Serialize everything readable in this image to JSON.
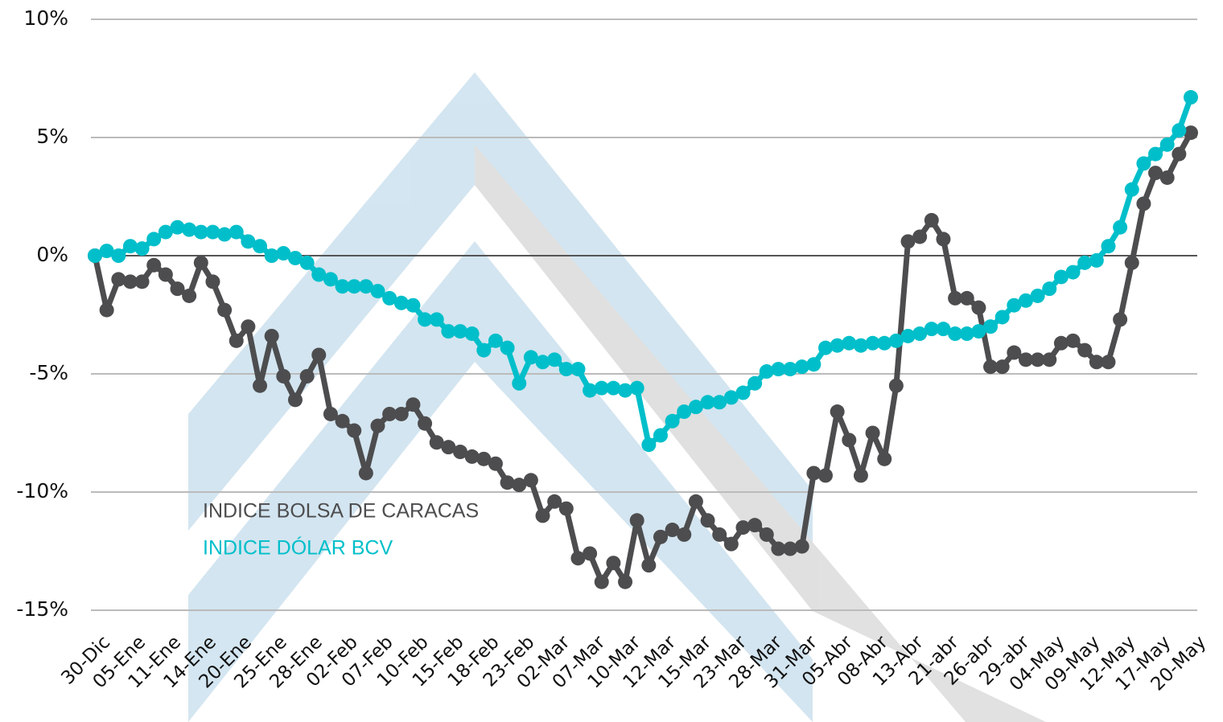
{
  "chart_data": {
    "type": "line",
    "categories": [
      "30-Dic",
      null,
      null,
      "05-Ene",
      null,
      null,
      "11-Ene",
      null,
      null,
      "14-Ene",
      null,
      null,
      "20-Ene",
      null,
      null,
      "25-Ene",
      null,
      null,
      "28-Ene",
      null,
      null,
      "02-Feb",
      null,
      null,
      "07-Feb",
      null,
      null,
      "10-Feb",
      null,
      null,
      "15-Feb",
      null,
      null,
      "18-Feb",
      null,
      null,
      "23-Feb",
      null,
      null,
      "02-Mar",
      null,
      null,
      "07-Mar",
      null,
      null,
      "10-Mar",
      null,
      null,
      "12-Mar",
      null,
      null,
      "15-Mar",
      null,
      null,
      "23-Mar",
      null,
      null,
      "28-Mar",
      null,
      null,
      "31-Mar",
      null,
      null,
      "05-Abr",
      null,
      null,
      "08-Abr",
      null,
      null,
      "13-Abr",
      null,
      null,
      "21-abr",
      null,
      null,
      "26-abr",
      null,
      null,
      "29-abr",
      null,
      null,
      "04-May",
      null,
      null,
      "09-May",
      null,
      null,
      "12-May",
      null,
      null,
      "17-May",
      null,
      null,
      "20-May"
    ],
    "series": [
      {
        "name": "INDICE BOLSA DE CARACAS",
        "color": "#4d4d4f",
        "values": [
          0,
          -2.3,
          -1.0,
          -1.1,
          -1.1,
          -0.4,
          -0.8,
          -1.4,
          -1.7,
          -0.3,
          -1.1,
          -2.3,
          -3.6,
          -3.0,
          -5.5,
          -3.4,
          -5.1,
          -6.1,
          -5.1,
          -4.2,
          -6.7,
          -7.0,
          -7.4,
          -9.2,
          -7.2,
          -6.7,
          -6.7,
          -6.3,
          -7.1,
          -7.9,
          -8.1,
          -8.3,
          -8.5,
          -8.6,
          -8.8,
          -9.6,
          -9.7,
          -9.5,
          -11.0,
          -10.4,
          -10.7,
          -12.8,
          -12.6,
          -13.8,
          -13.0,
          -13.8,
          -11.2,
          -13.1,
          -11.9,
          -11.6,
          -11.8,
          -10.4,
          -11.2,
          -11.8,
          -12.2,
          -11.5,
          -11.4,
          -11.8,
          -12.4,
          -12.4,
          -12.3,
          -9.2,
          -9.3,
          -6.6,
          -7.8,
          -9.3,
          -7.5,
          -8.6,
          -5.5,
          0.6,
          0.8,
          1.5,
          0.7,
          -1.8,
          -1.8,
          -2.2,
          -4.7,
          -4.7,
          -4.1,
          -4.4,
          -4.4,
          -4.4,
          -3.7,
          -3.6,
          -4.0,
          -4.5,
          -4.5,
          -2.7,
          -0.3,
          2.2,
          3.5,
          3.3,
          4.3,
          5.2
        ]
      },
      {
        "name": "INDICE DÓLAR BCV",
        "color": "#00bfca",
        "values": [
          0,
          0.2,
          0,
          0.4,
          0.3,
          0.7,
          1.0,
          1.2,
          1.1,
          1.0,
          1.0,
          0.9,
          1.0,
          0.6,
          0.4,
          0.0,
          0.1,
          -0.1,
          -0.3,
          -0.8,
          -1.0,
          -1.3,
          -1.3,
          -1.3,
          -1.5,
          -1.8,
          -2.0,
          -2.1,
          -2.7,
          -2.7,
          -3.2,
          -3.2,
          -3.3,
          -4.0,
          -3.6,
          -3.9,
          -5.4,
          -4.3,
          -4.5,
          -4.4,
          -4.8,
          -4.8,
          -5.7,
          -5.6,
          -5.6,
          -5.7,
          -5.6,
          -8.0,
          -7.6,
          -7.0,
          -6.6,
          -6.4,
          -6.2,
          -6.2,
          -6.0,
          -5.8,
          -5.4,
          -4.9,
          -4.8,
          -4.8,
          -4.7,
          -4.6,
          -3.9,
          -3.8,
          -3.7,
          -3.8,
          -3.7,
          -3.7,
          -3.6,
          -3.4,
          -3.3,
          -3.1,
          -3.1,
          -3.3,
          -3.3,
          -3.2,
          -3.0,
          -2.6,
          -2.1,
          -1.9,
          -1.7,
          -1.4,
          -0.9,
          -0.7,
          -0.3,
          -0.2,
          0.4,
          1.2,
          2.8,
          3.9,
          4.3,
          4.7,
          5.3,
          6.7
        ]
      }
    ],
    "ylim": [
      -15,
      10
    ],
    "yticks": [
      {
        "value": -15,
        "label": "-15%"
      },
      {
        "value": -10,
        "label": "-10%"
      },
      {
        "value": -5,
        "label": "-5%"
      },
      {
        "value": 0,
        "label": "0%"
      },
      {
        "value": 5,
        "label": "5%"
      },
      {
        "value": 10,
        "label": "10%"
      }
    ],
    "grid": true
  }
}
